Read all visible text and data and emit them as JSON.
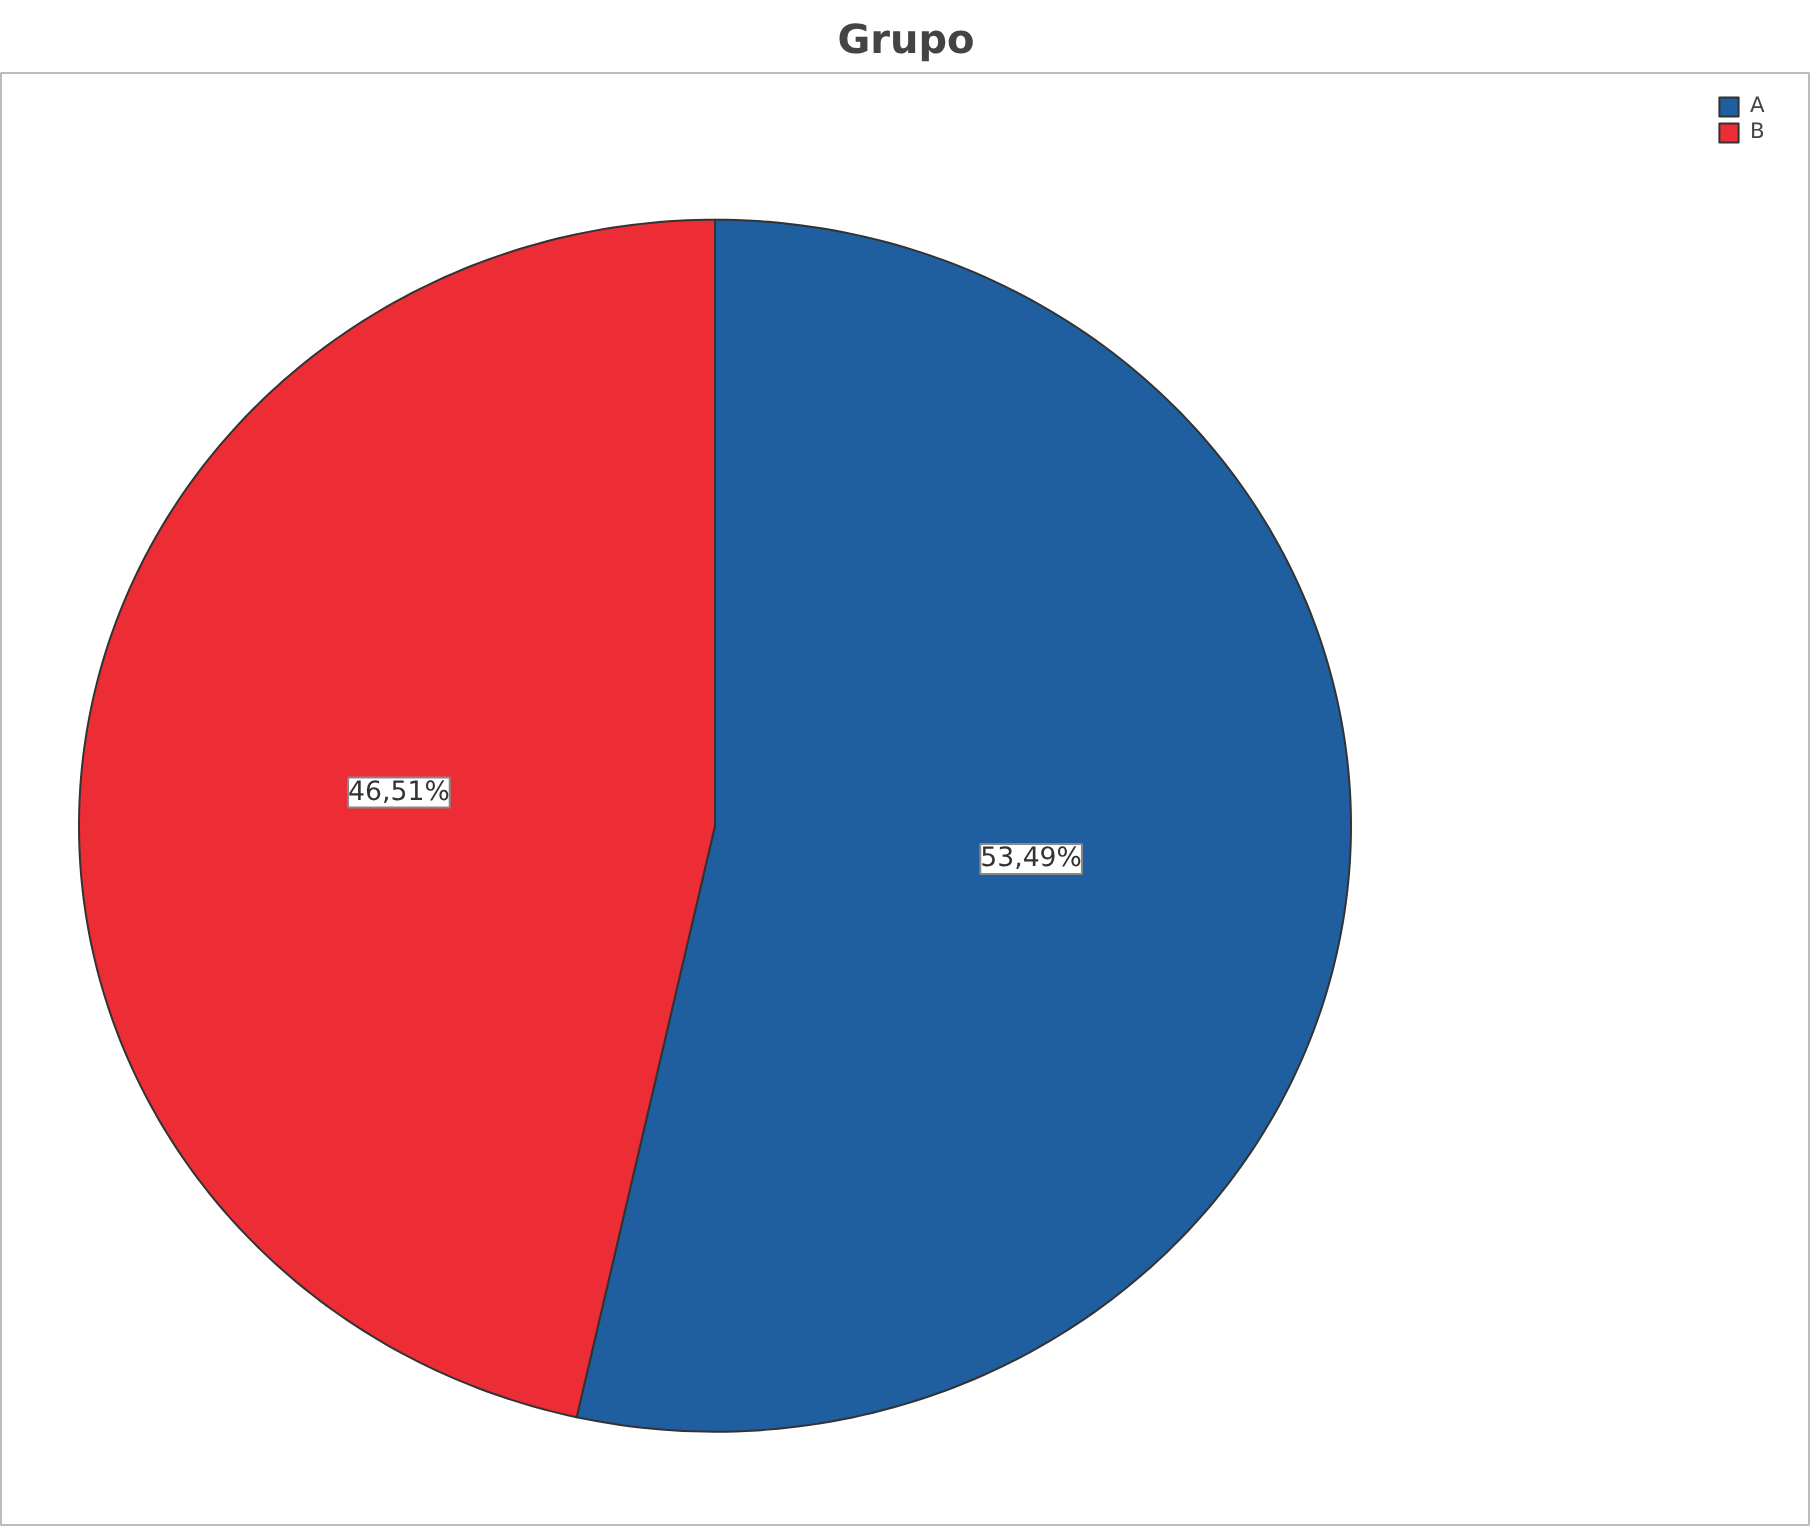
{
  "chart_data": {
    "type": "pie",
    "title": "Grupo",
    "categories": [
      "A",
      "B"
    ],
    "values": [
      53.49,
      46.51
    ],
    "colors": [
      "#1f5fa0",
      "#ec2d36"
    ],
    "value_labels": [
      "53,49%",
      "46,51%"
    ],
    "legend": "top right"
  }
}
